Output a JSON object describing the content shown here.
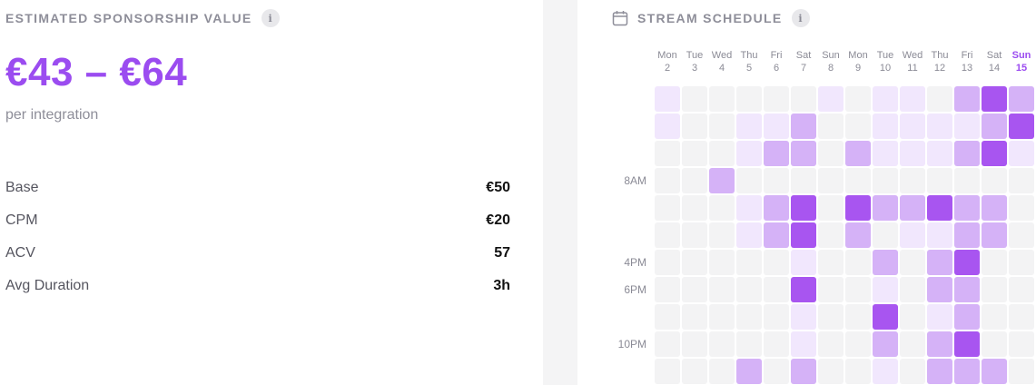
{
  "sponsorship": {
    "title": "ESTIMATED SPONSORSHIP VALUE",
    "info_icon": "i",
    "value_range": "€43 – €64",
    "subtitle": "per integration",
    "stats": [
      {
        "label": "Base",
        "value": "€50"
      },
      {
        "label": "CPM",
        "value": "€20"
      },
      {
        "label": "ACV",
        "value": "57"
      },
      {
        "label": "Avg Duration",
        "value": "3h"
      }
    ]
  },
  "schedule": {
    "title": "STREAM SCHEDULE",
    "info_icon": "i",
    "icon": "calendar-icon",
    "accent_color": "#9b4cf0",
    "days": [
      {
        "dow": "Mon",
        "date": "2"
      },
      {
        "dow": "Tue",
        "date": "3"
      },
      {
        "dow": "Wed",
        "date": "4"
      },
      {
        "dow": "Thu",
        "date": "5"
      },
      {
        "dow": "Fri",
        "date": "6"
      },
      {
        "dow": "Sat",
        "date": "7"
      },
      {
        "dow": "Sun",
        "date": "8"
      },
      {
        "dow": "Mon",
        "date": "9"
      },
      {
        "dow": "Tue",
        "date": "10"
      },
      {
        "dow": "Wed",
        "date": "11"
      },
      {
        "dow": "Thu",
        "date": "12"
      },
      {
        "dow": "Fri",
        "date": "13"
      },
      {
        "dow": "Sat",
        "date": "14"
      },
      {
        "dow": "Sun",
        "date": "15",
        "highlighted": true
      }
    ],
    "time_labels": [
      "",
      "",
      "",
      "8AM",
      "",
      "",
      "4PM",
      "6PM",
      "",
      "10PM",
      ""
    ],
    "intensity_levels": [
      "#f3f3f4",
      "#f1e7fd",
      "#e5d3fb",
      "#d5b2f7",
      "#a855f0"
    ],
    "heatmap": [
      [
        1,
        0,
        0,
        0,
        0,
        0,
        1,
        0,
        1,
        1,
        0,
        3,
        4,
        3
      ],
      [
        1,
        0,
        0,
        1,
        1,
        3,
        0,
        0,
        1,
        1,
        1,
        1,
        3,
        4
      ],
      [
        0,
        0,
        0,
        1,
        3,
        3,
        0,
        3,
        1,
        1,
        1,
        3,
        4,
        1
      ],
      [
        0,
        0,
        3,
        0,
        0,
        0,
        0,
        0,
        0,
        0,
        0,
        0,
        0,
        0
      ],
      [
        0,
        0,
        0,
        1,
        3,
        4,
        0,
        4,
        3,
        3,
        4,
        3,
        3,
        0
      ],
      [
        0,
        0,
        0,
        1,
        3,
        4,
        0,
        3,
        0,
        1,
        1,
        3,
        3,
        0
      ],
      [
        0,
        0,
        0,
        0,
        0,
        1,
        0,
        0,
        3,
        0,
        3,
        4,
        0,
        0
      ],
      [
        0,
        0,
        0,
        0,
        0,
        4,
        0,
        0,
        1,
        0,
        3,
        3,
        0,
        0
      ],
      [
        0,
        0,
        0,
        0,
        0,
        1,
        0,
        0,
        4,
        0,
        1,
        3,
        0,
        0
      ],
      [
        0,
        0,
        0,
        0,
        0,
        1,
        0,
        0,
        3,
        0,
        3,
        4,
        0,
        0
      ],
      [
        0,
        0,
        0,
        3,
        0,
        3,
        0,
        0,
        1,
        0,
        3,
        3,
        3,
        0
      ]
    ]
  }
}
